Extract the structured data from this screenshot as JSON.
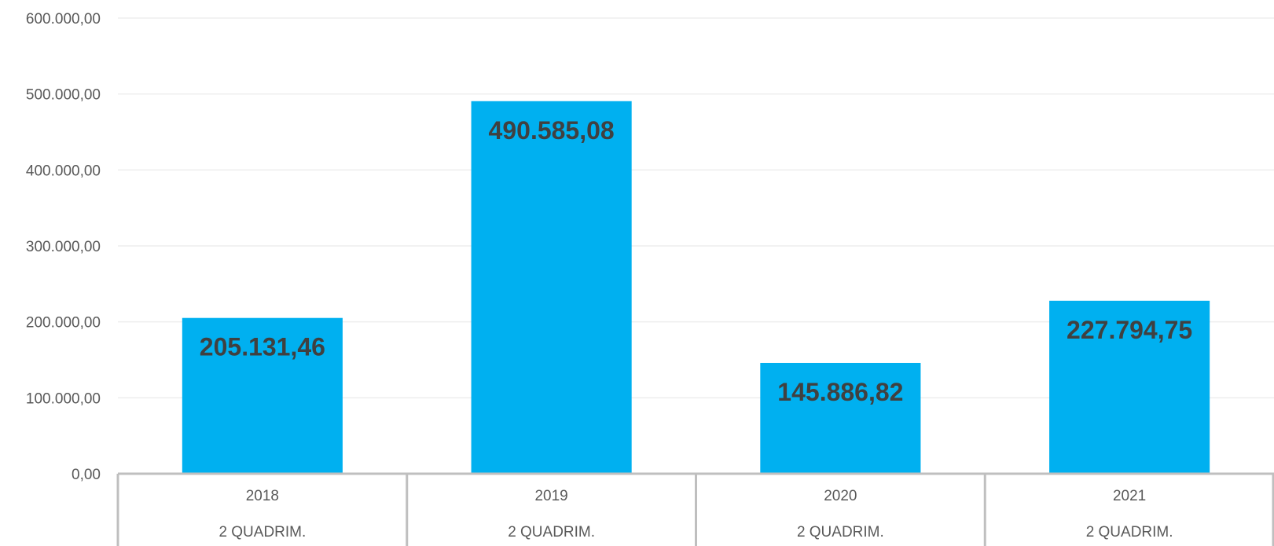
{
  "chart_data": {
    "type": "bar",
    "categories": [
      "2018",
      "2019",
      "2020",
      "2021"
    ],
    "category_sublabels": [
      "2 QUADRIM.",
      "2 QUADRIM.",
      "2 QUADRIM.",
      "2 QUADRIM."
    ],
    "values": [
      205131.46,
      490585.08,
      145886.82,
      227794.75
    ],
    "data_labels": [
      "205.131,46",
      "490.585,08",
      "145.886,82",
      "227.794,75"
    ],
    "ylim": [
      0,
      600000
    ],
    "yticks": [
      0,
      100000,
      200000,
      300000,
      400000,
      500000,
      600000
    ],
    "ytick_labels": [
      "0,00",
      "100.000,00",
      "200.000,00",
      "300.000,00",
      "400.000,00",
      "500.000,00",
      "600.000,00"
    ],
    "grid": true,
    "legend": "none",
    "colors": {
      "bar": "#00b0f0",
      "grid": "#eeeeee",
      "axis": "#bfbfbf",
      "text": "#595959",
      "data_label": "#404040"
    }
  }
}
